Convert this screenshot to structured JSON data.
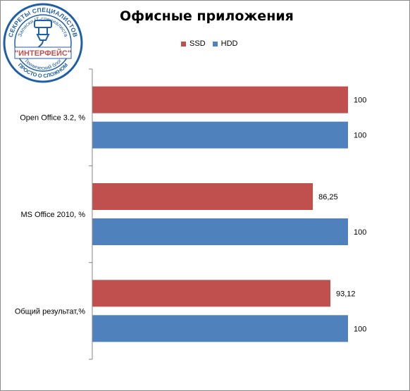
{
  "chart_data": {
    "type": "bar",
    "orientation": "horizontal",
    "title": "Офисные приложения",
    "categories": [
      "Open Office 3.2, %",
      "MS Office 2010, %",
      "Общий результат,%"
    ],
    "series": [
      {
        "name": "SSD",
        "color": "#c0504d",
        "values": [
          100,
          86.25,
          93.12
        ],
        "labels": [
          "100",
          "86,25",
          "93,12"
        ]
      },
      {
        "name": "HDD",
        "color": "#4f81bd",
        "values": [
          100,
          100,
          100
        ],
        "labels": [
          "100",
          "100",
          "100"
        ]
      }
    ],
    "xlim": [
      0,
      100
    ],
    "grid": false,
    "legend": "top"
  },
  "logo": {
    "top_text": "СЕКРЕТЫ СПЕЦИАЛИСТОВ",
    "inner_text": "Записки IT-специалиста",
    "name": "\"ИНТЕРФЕЙС\"",
    "lower_text": "Технический блог",
    "bottom_text": "ПРОСТО О СЛОЖНОМ",
    "ring_color": "#1f5fa8"
  }
}
